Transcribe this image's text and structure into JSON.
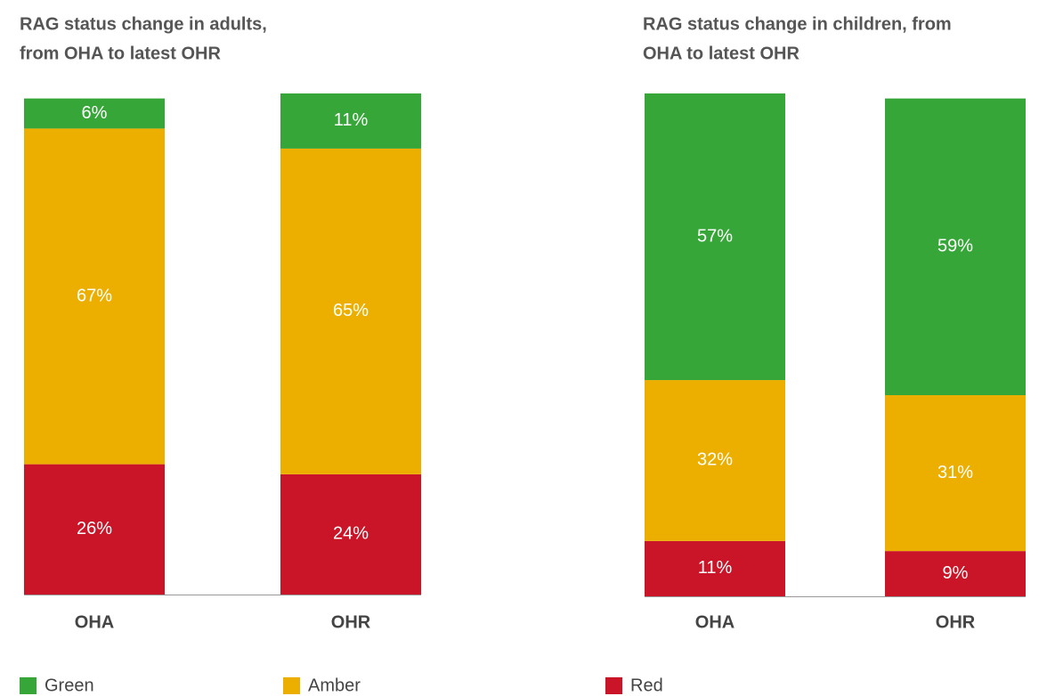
{
  "chart_data": [
    {
      "type": "stacked_bar",
      "title": [
        "RAG status change in adults,",
        "from OHA to latest OHR"
      ],
      "categories": [
        "OHA",
        "OHR"
      ],
      "ylim": [
        0,
        100
      ],
      "series": [
        {
          "name": "Red",
          "color": "#c91527",
          "values": [
            26,
            24
          ],
          "value_labels": [
            "26%",
            "24%"
          ]
        },
        {
          "name": "Amber",
          "color": "#ecaf00",
          "values": [
            67,
            65
          ],
          "value_labels": [
            "67%",
            "65%"
          ]
        },
        {
          "name": "Green",
          "color": "#35a637",
          "values": [
            6,
            11
          ],
          "value_labels": [
            "6%",
            "11%"
          ]
        }
      ]
    },
    {
      "type": "stacked_bar",
      "title": [
        "RAG status change in children, from",
        "OHA to latest OHR"
      ],
      "categories": [
        "OHA",
        "OHR"
      ],
      "ylim": [
        0,
        100
      ],
      "series": [
        {
          "name": "Red",
          "color": "#c91527",
          "values": [
            11,
            9
          ],
          "value_labels": [
            "11%",
            "9%"
          ]
        },
        {
          "name": "Amber",
          "color": "#ecaf00",
          "values": [
            32,
            31
          ],
          "value_labels": [
            "32%",
            "31%"
          ]
        },
        {
          "name": "Green",
          "color": "#35a637",
          "values": [
            57,
            59
          ],
          "value_labels": [
            "57%",
            "59%"
          ]
        }
      ]
    }
  ]
}
